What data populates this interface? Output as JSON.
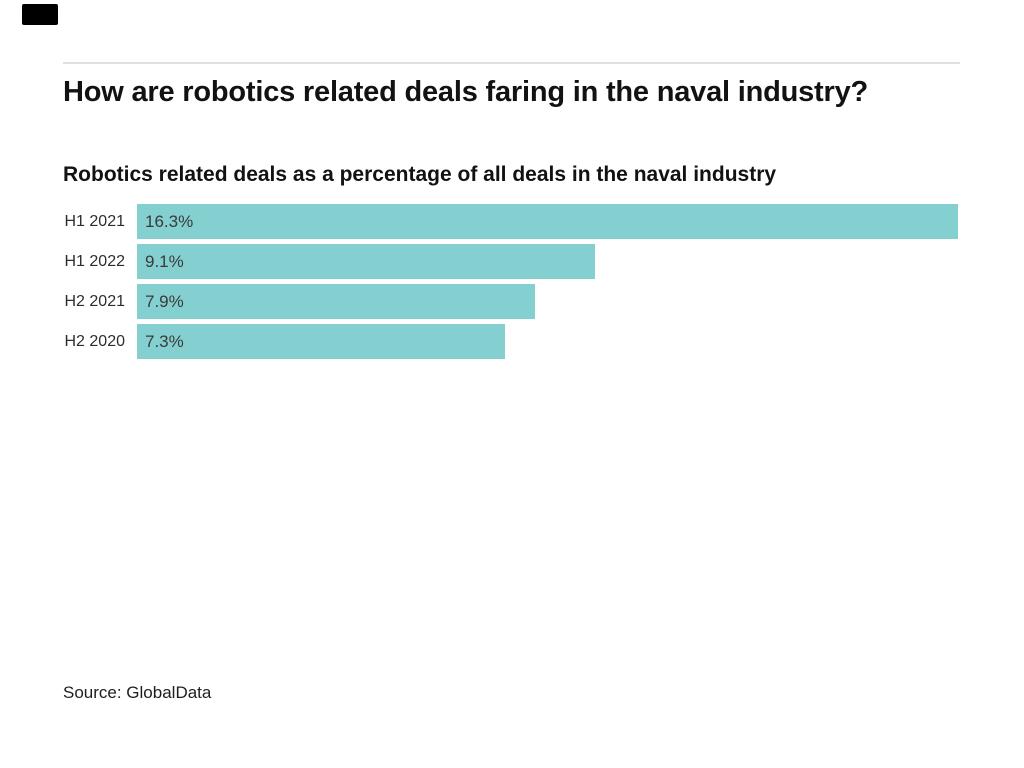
{
  "page": {
    "background_color": "#ffffff",
    "accent_color": "#84cfd0"
  },
  "header": {
    "logo": "black-rectangle-logo",
    "title": "How are robotics related deals faring in the naval industry?",
    "subtitle": "Robotics related deals as a percentage of all deals in the naval industry"
  },
  "chart_data": {
    "type": "bar",
    "orientation": "horizontal",
    "title": "How are robotics related deals faring in the naval industry?",
    "subtitle": "Robotics related deals as a percentage of all deals in the naval industry",
    "categories": [
      "H1 2021",
      "H1 2022",
      "H2 2021",
      "H2 2020"
    ],
    "values": [
      16.3,
      9.1,
      7.9,
      7.3
    ],
    "value_labels": [
      "16.3%",
      "9.1%",
      "7.9%",
      "7.3%"
    ],
    "xlabel": "",
    "ylabel": "",
    "xlim": [
      0,
      16.3
    ],
    "grid": false,
    "legend": false,
    "bar_color": "#84cfd0",
    "sorted": "descending"
  },
  "footer": {
    "source": "Source: GlobalData"
  }
}
